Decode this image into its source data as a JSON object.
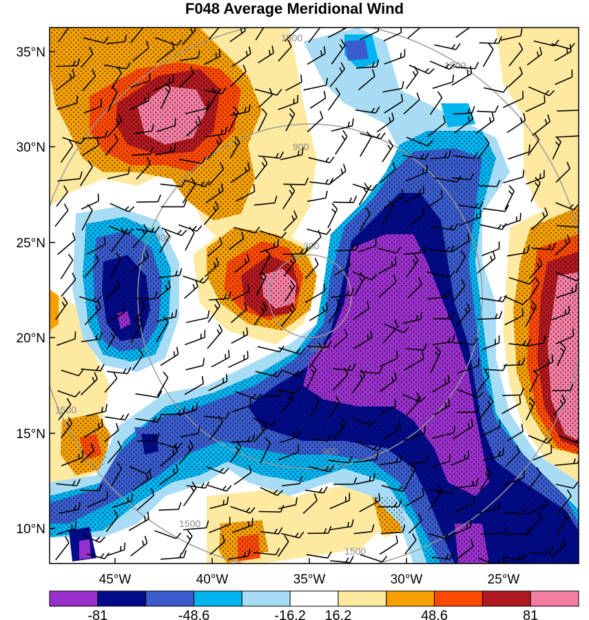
{
  "title": "F048 Average Meridional Wind",
  "lat_labels": [
    "35°N",
    "30°N",
    "25°N",
    "20°N",
    "15°N",
    "10°N"
  ],
  "lon_labels": [
    "45°W",
    "40°W",
    "35°W",
    "30°W",
    "25°W"
  ],
  "ring_labels": [
    "300",
    "900",
    "1500"
  ],
  "colorbar": {
    "colors": [
      "#9a30cc",
      "#020b8a",
      "#3a5bcc",
      "#00b4ef",
      "#a8dcf5",
      "#ffffff",
      "#fde9a0",
      "#f5a000",
      "#ff4a00",
      "#b0191f",
      "#f47ea2"
    ],
    "labels": [
      "-81",
      "-48.6",
      "-16.2",
      "16.2",
      "48.6",
      "81"
    ]
  },
  "palette": {
    "purple": "#9a30cc",
    "navy": "#020b8a",
    "blue": "#3a5bcc",
    "cyan": "#00b4ef",
    "lightblue": "#a8dcf5",
    "white": "#ffffff",
    "yellow": "#fde9a0",
    "orange": "#f5a000",
    "redorange": "#ff4a00",
    "darkred": "#b0191f",
    "pink": "#f47ea2"
  }
}
